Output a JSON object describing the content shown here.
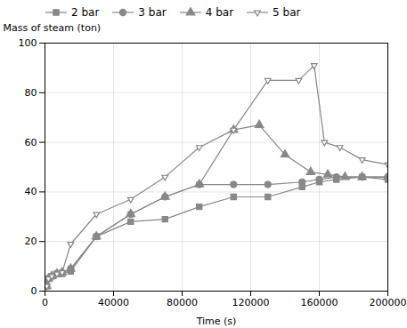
{
  "chart_data": {
    "type": "line",
    "xlabel": "Time (s)",
    "ylabel": "Mass of steam (ton)",
    "xlim": [
      0,
      200000
    ],
    "ylim": [
      0,
      100
    ],
    "xticks": [
      0,
      40000,
      80000,
      120000,
      160000,
      200000
    ],
    "yticks": [
      0,
      20,
      40,
      60,
      80,
      100
    ],
    "grid": true,
    "legend": "upper left",
    "color": "#888888",
    "series": [
      {
        "name": "2 bar",
        "marker": "square",
        "x": [
          1000,
          2000,
          4000,
          7000,
          10000,
          15000,
          30000,
          50000,
          70000,
          90000,
          110000,
          130000,
          150000,
          160000,
          170000,
          185000,
          200000
        ],
        "values": [
          2,
          5,
          6,
          7,
          7,
          8,
          22,
          28,
          29,
          34,
          38,
          38,
          42,
          44,
          45,
          46,
          45
        ]
      },
      {
        "name": "3 bar",
        "marker": "circle",
        "x": [
          1000,
          2000,
          4000,
          7000,
          10000,
          15000,
          30000,
          50000,
          70000,
          90000,
          110000,
          130000,
          150000,
          160000,
          170000,
          185000,
          200000
        ],
        "values": [
          2,
          5,
          6,
          7,
          7.5,
          9,
          22,
          31,
          38,
          43,
          43,
          43,
          44,
          45,
          46,
          46,
          46
        ]
      },
      {
        "name": "4 bar",
        "marker": "triangle-up",
        "x": [
          1000,
          2000,
          4000,
          7000,
          10000,
          15000,
          30000,
          50000,
          70000,
          90000,
          110000,
          125000,
          140000,
          155000,
          165000,
          175000,
          185000,
          200000
        ],
        "values": [
          2,
          5,
          6,
          7,
          7.5,
          9,
          22,
          31,
          38,
          43,
          65,
          67,
          55,
          48,
          47,
          46,
          46,
          46
        ]
      },
      {
        "name": "5 bar",
        "marker": "triangle-down-open",
        "x": [
          1000,
          2000,
          4000,
          7000,
          10000,
          15000,
          30000,
          50000,
          70000,
          90000,
          110000,
          130000,
          148000,
          157000,
          163000,
          172000,
          185000,
          200000
        ],
        "values": [
          2,
          5,
          6,
          7,
          7.5,
          19,
          31,
          37,
          46,
          58,
          65,
          85,
          85,
          91,
          60,
          58,
          53,
          51
        ]
      }
    ]
  }
}
